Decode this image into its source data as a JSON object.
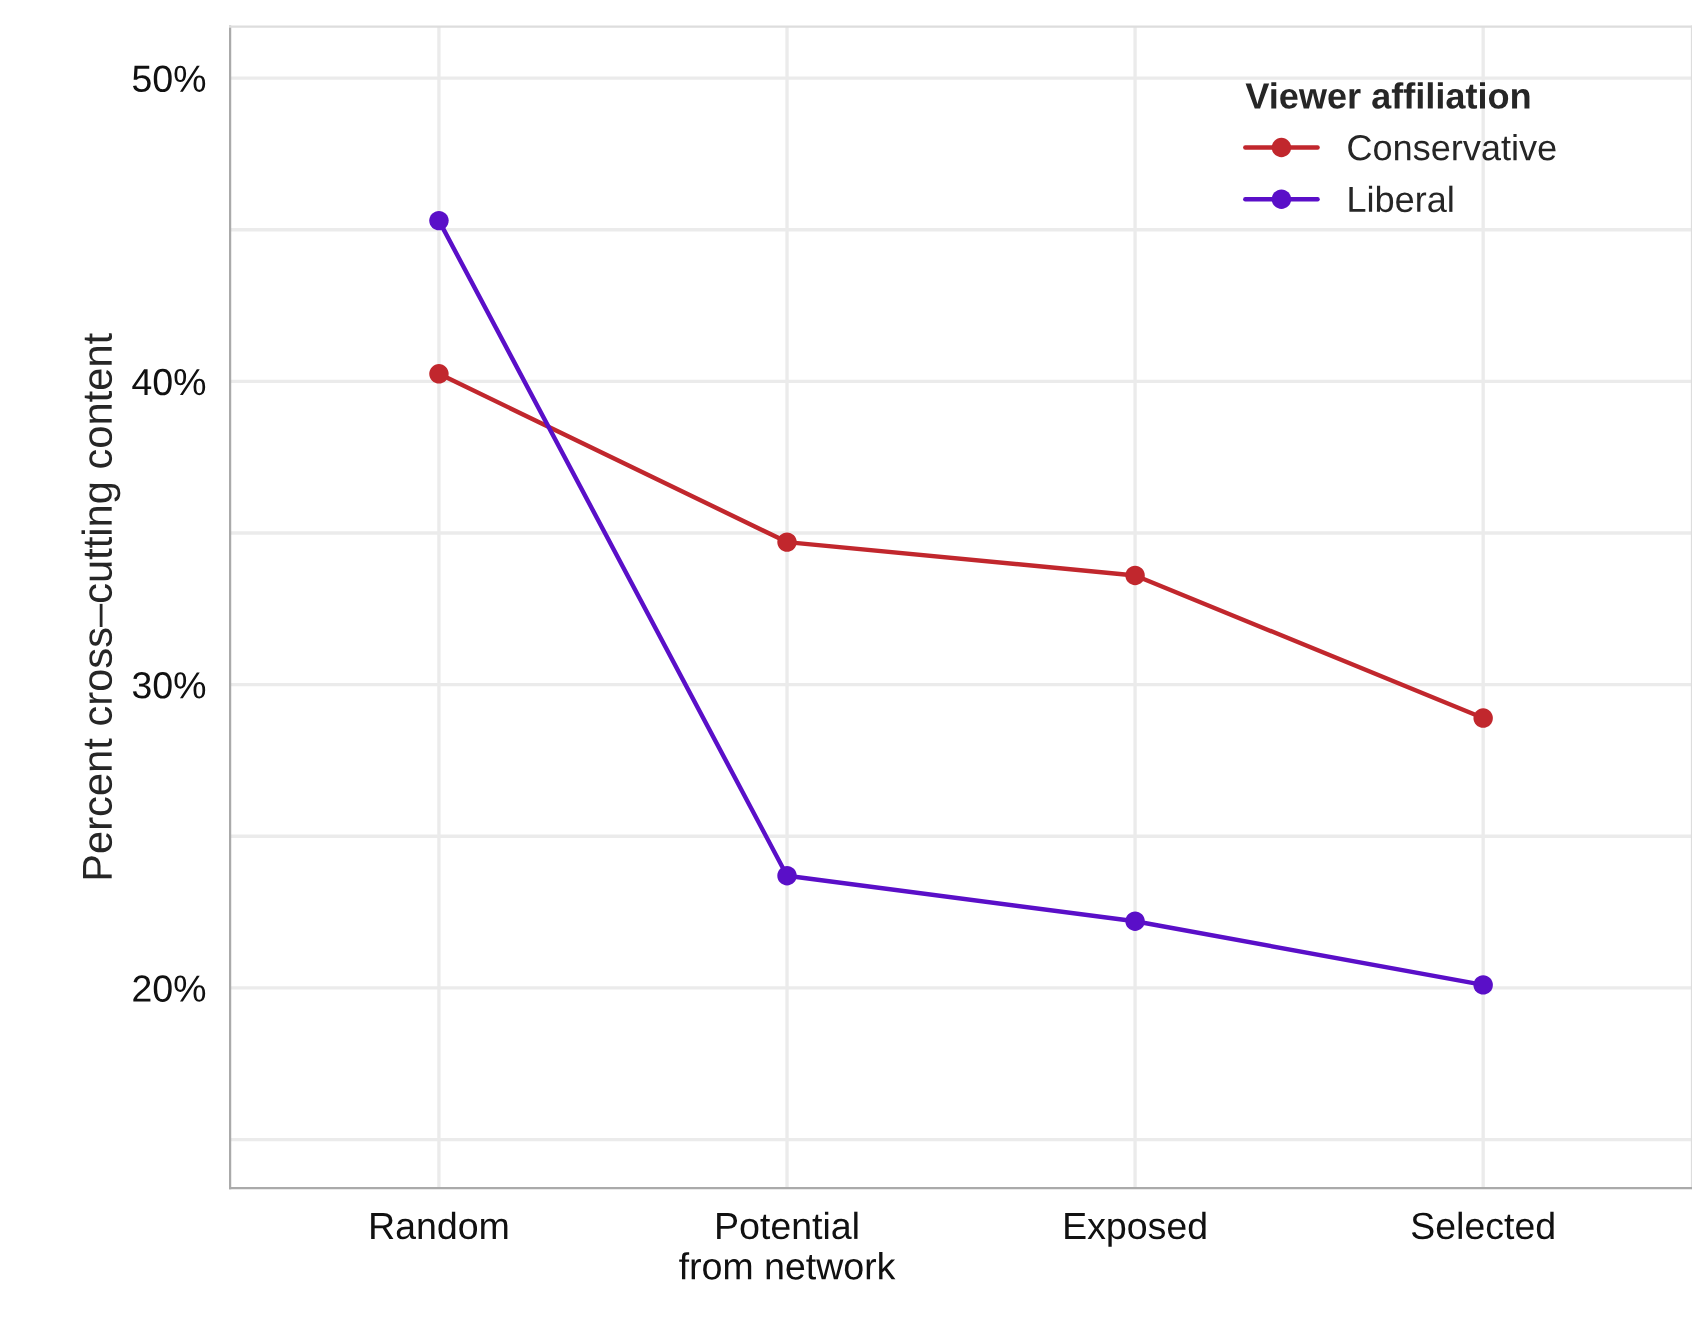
{
  "chart_data": {
    "type": "line",
    "ylabel": "Percent cross–cutting content",
    "legend_title": "Viewer affiliation",
    "categories": [
      "Random",
      "Potential\nfrom network",
      "Exposed",
      "Selected"
    ],
    "series": [
      {
        "name": "Conservative",
        "color": "#c1272d",
        "values": [
          40.25,
          34.7,
          33.6,
          28.9
        ]
      },
      {
        "name": "Liberal",
        "color": "#5a0fc8",
        "values": [
          45.3,
          23.7,
          22.2,
          20.1
        ]
      }
    ],
    "ylim": [
      13.4,
      51.7
    ],
    "yticks": [
      {
        "value": 15,
        "label": null
      },
      {
        "value": 20,
        "label": "20%"
      },
      {
        "value": 25,
        "label": null
      },
      {
        "value": 30,
        "label": "30%"
      },
      {
        "value": 35,
        "label": null
      },
      {
        "value": 40,
        "label": "40%"
      },
      {
        "value": 45,
        "label": null
      },
      {
        "value": 50,
        "label": "50%"
      }
    ],
    "grid": true,
    "legend": "top right",
    "marker": "circle",
    "line_style": "solid"
  }
}
